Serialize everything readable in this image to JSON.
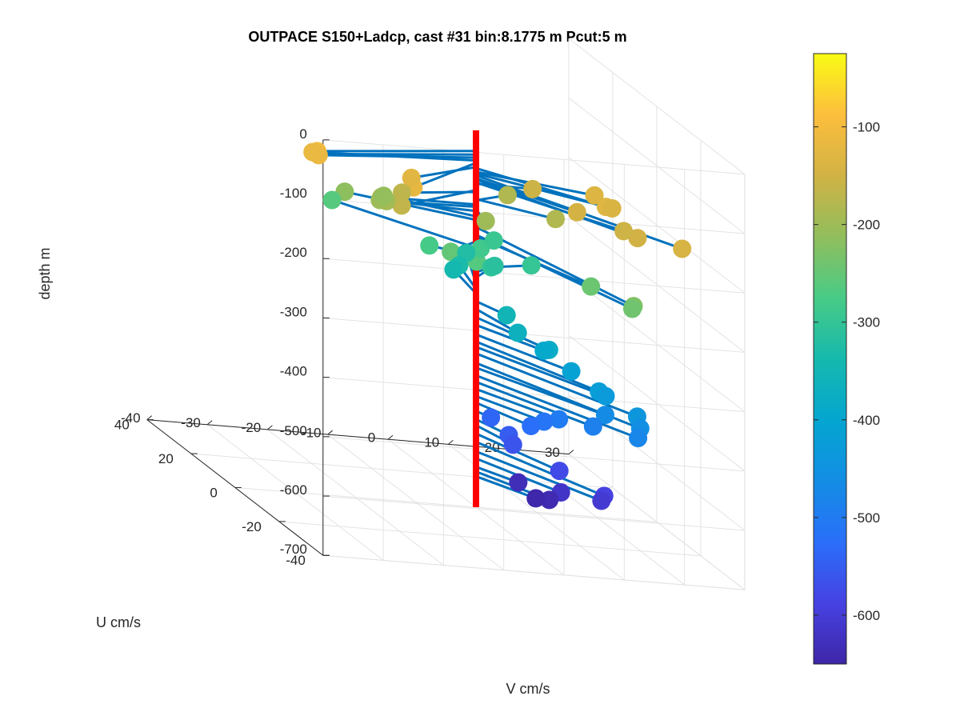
{
  "chart_data": {
    "type": "scatter",
    "title": "OUTPACE S150+Ladcp, cast #31 bin:8.1775 m  Pcut:5 m",
    "xlabel": "V cm/s",
    "ylabel": "U cm/s",
    "zlabel": "depth m",
    "xlim": [
      -40,
      30
    ],
    "ylim": [
      -40,
      40
    ],
    "zlim": [
      -700,
      0
    ],
    "xticks": [
      "-40",
      "-30",
      "-20",
      "-10",
      "0",
      "10",
      "20",
      "30"
    ],
    "yticks": [
      "-40",
      "-20",
      "0",
      "20",
      "40"
    ],
    "zticks": [
      "0",
      "-100",
      "-200",
      "-300",
      "-400",
      "-500",
      "-600",
      "-700"
    ],
    "grid": true,
    "reference_line": {
      "x": 0,
      "y": 0,
      "z_from": -65,
      "z_to": -700,
      "color": "#ff0000"
    },
    "stick_color": "#0072bd",
    "colorbar": {
      "range": [
        -650,
        -25
      ],
      "ticks": [
        "-100",
        "-200",
        "-300",
        "-400",
        "-500",
        "-600"
      ]
    },
    "points": [
      {
        "z": -100,
        "v": -29.5,
        "u": -8.6
      },
      {
        "z": -106,
        "v": -29.2,
        "u": -8.1
      },
      {
        "z": -111,
        "v": -28.6,
        "u": -6.8
      },
      {
        "z": -116,
        "v": -28.3,
        "u": -3.2
      },
      {
        "z": -120,
        "v": -17.5,
        "u": -19.5
      },
      {
        "z": -127,
        "v": -14.6,
        "u": -10.6
      },
      {
        "z": -129,
        "v": 14.8,
        "u": -18.5
      },
      {
        "z": -135,
        "v": 16.3,
        "u": -9.2
      },
      {
        "z": -138,
        "v": 16.9,
        "u": -15.6
      },
      {
        "z": -141,
        "v": 20.6,
        "u": -37.3
      },
      {
        "z": -146,
        "v": 10.6,
        "u": -16.9
      },
      {
        "z": -148,
        "v": 15.9,
        "u": -29.9
      },
      {
        "z": -153,
        "v": 15.7,
        "u": -24.1
      },
      {
        "z": -155,
        "v": 9.2,
        "u": -0.5
      },
      {
        "z": -166,
        "v": -17.5,
        "u": -14.1
      },
      {
        "z": -169,
        "v": -13.9,
        "u": -4.4
      },
      {
        "z": -181,
        "v": 10.0,
        "u": -8.8
      },
      {
        "z": -183,
        "v": 7.1,
        "u": 5.1
      },
      {
        "z": -190,
        "v": -15.8,
        "u": -0.2
      },
      {
        "z": -194,
        "v": -15.2,
        "u": -1.0
      },
      {
        "z": -199,
        "v": -0.9,
        "u": -6.9
      },
      {
        "z": -201,
        "v": -15.2,
        "u": 2.1
      },
      {
        "z": -210,
        "v": -12.2,
        "u": 8.6
      },
      {
        "z": -216,
        "v": -17.6,
        "u": 11.5
      },
      {
        "z": -228,
        "v": 10.2,
        "u": -43.7
      },
      {
        "z": -241,
        "v": 11.2,
        "u": -40.4
      },
      {
        "z": -244,
        "v": 9.3,
        "u": -26.8
      },
      {
        "z": -252,
        "v": -7.2,
        "u": -8.3
      },
      {
        "z": -263,
        "v": -15.2,
        "u": 23.8
      },
      {
        "z": -265,
        "v": -2.9,
        "u": -8.3
      },
      {
        "z": -277,
        "v": -6.1,
        "u": 4.5
      },
      {
        "z": -284,
        "v": 3.7,
        "u": 8.0
      },
      {
        "z": -292,
        "v": 9.2,
        "u": 17.1
      },
      {
        "z": -297,
        "v": 10.9,
        "u": 4.7
      },
      {
        "z": -304,
        "v": 4.0,
        "u": 4.0
      },
      {
        "z": -313,
        "v": 6.2,
        "u": 8.6
      },
      {
        "z": -323,
        "v": 5.5,
        "u": 19.5
      },
      {
        "z": -332,
        "v": 2.5,
        "u": 14.5
      },
      {
        "z": -340,
        "v": 1.6,
        "u": 14.6
      },
      {
        "z": -353,
        "v": 2.3,
        "u": -7.6
      },
      {
        "z": -366,
        "v": 2.0,
        "u": -13.5
      },
      {
        "z": -380,
        "v": 5.7,
        "u": -17.6
      },
      {
        "z": -393,
        "v": 6.4,
        "u": -13.3
      },
      {
        "z": -409,
        "v": 8.8,
        "u": -19.2
      },
      {
        "z": -421,
        "v": 10.8,
        "u": -26.3
      },
      {
        "z": -430,
        "v": 12.2,
        "u": -25.5
      },
      {
        "z": -441,
        "v": 14.7,
        "u": -33.0
      },
      {
        "z": -457,
        "v": 14.7,
        "u": -34.4
      },
      {
        "z": -465,
        "v": 12.6,
        "u": -24.2
      },
      {
        "z": -478,
        "v": 15.0,
        "u": -32.6
      },
      {
        "z": -489,
        "v": 11.0,
        "u": -23.1
      },
      {
        "z": -501,
        "v": 8.1,
        "u": -15.5
      },
      {
        "z": -513,
        "v": 6.5,
        "u": -13.1
      },
      {
        "z": -524,
        "v": 4.6,
        "u": -12.4
      },
      {
        "z": -538,
        "v": 1.2,
        "u": -3.5
      },
      {
        "z": -552,
        "v": 2.3,
        "u": -8.6
      },
      {
        "z": -562,
        "v": 2.2,
        "u": -10.8
      },
      {
        "z": -576,
        "v": 6.5,
        "u": -20.1
      },
      {
        "z": -590,
        "v": 10.8,
        "u": -28.7
      },
      {
        "z": -606,
        "v": 11.4,
        "u": -25.8
      },
      {
        "z": -618,
        "v": 7.6,
        "u": -17.8
      },
      {
        "z": -632,
        "v": 4.1,
        "u": -8.0
      },
      {
        "z": -640,
        "v": 6.8,
        "u": -14.7
      },
      {
        "z": -648,
        "v": 5.8,
        "u": -11.3
      }
    ]
  }
}
